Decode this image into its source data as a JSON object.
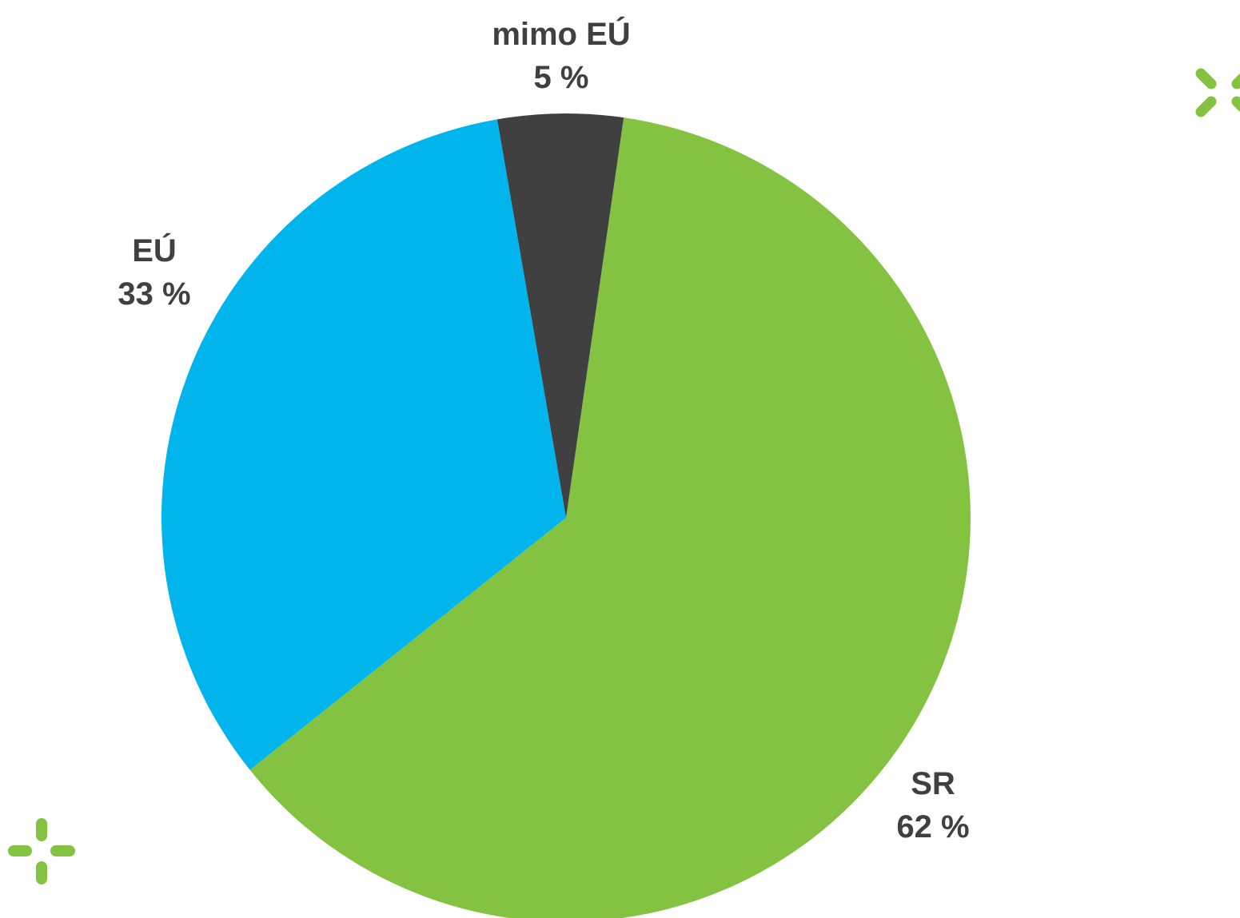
{
  "chart_data": {
    "type": "pie",
    "slices": [
      {
        "label": "SR",
        "value": 62,
        "value_label": "62 %",
        "color": "#84c341"
      },
      {
        "label": "EÚ",
        "value": 33,
        "value_label": "33 %",
        "color": "#00b5eb"
      },
      {
        "label": "mimo EÚ",
        "value": 5,
        "value_label": "5 %",
        "color": "#404040"
      }
    ],
    "label_color": "#404040"
  },
  "decorations": {
    "accent_color": "#84c341",
    "top_right": "x-mark-icon",
    "bottom_left": "crosshair-icon"
  }
}
